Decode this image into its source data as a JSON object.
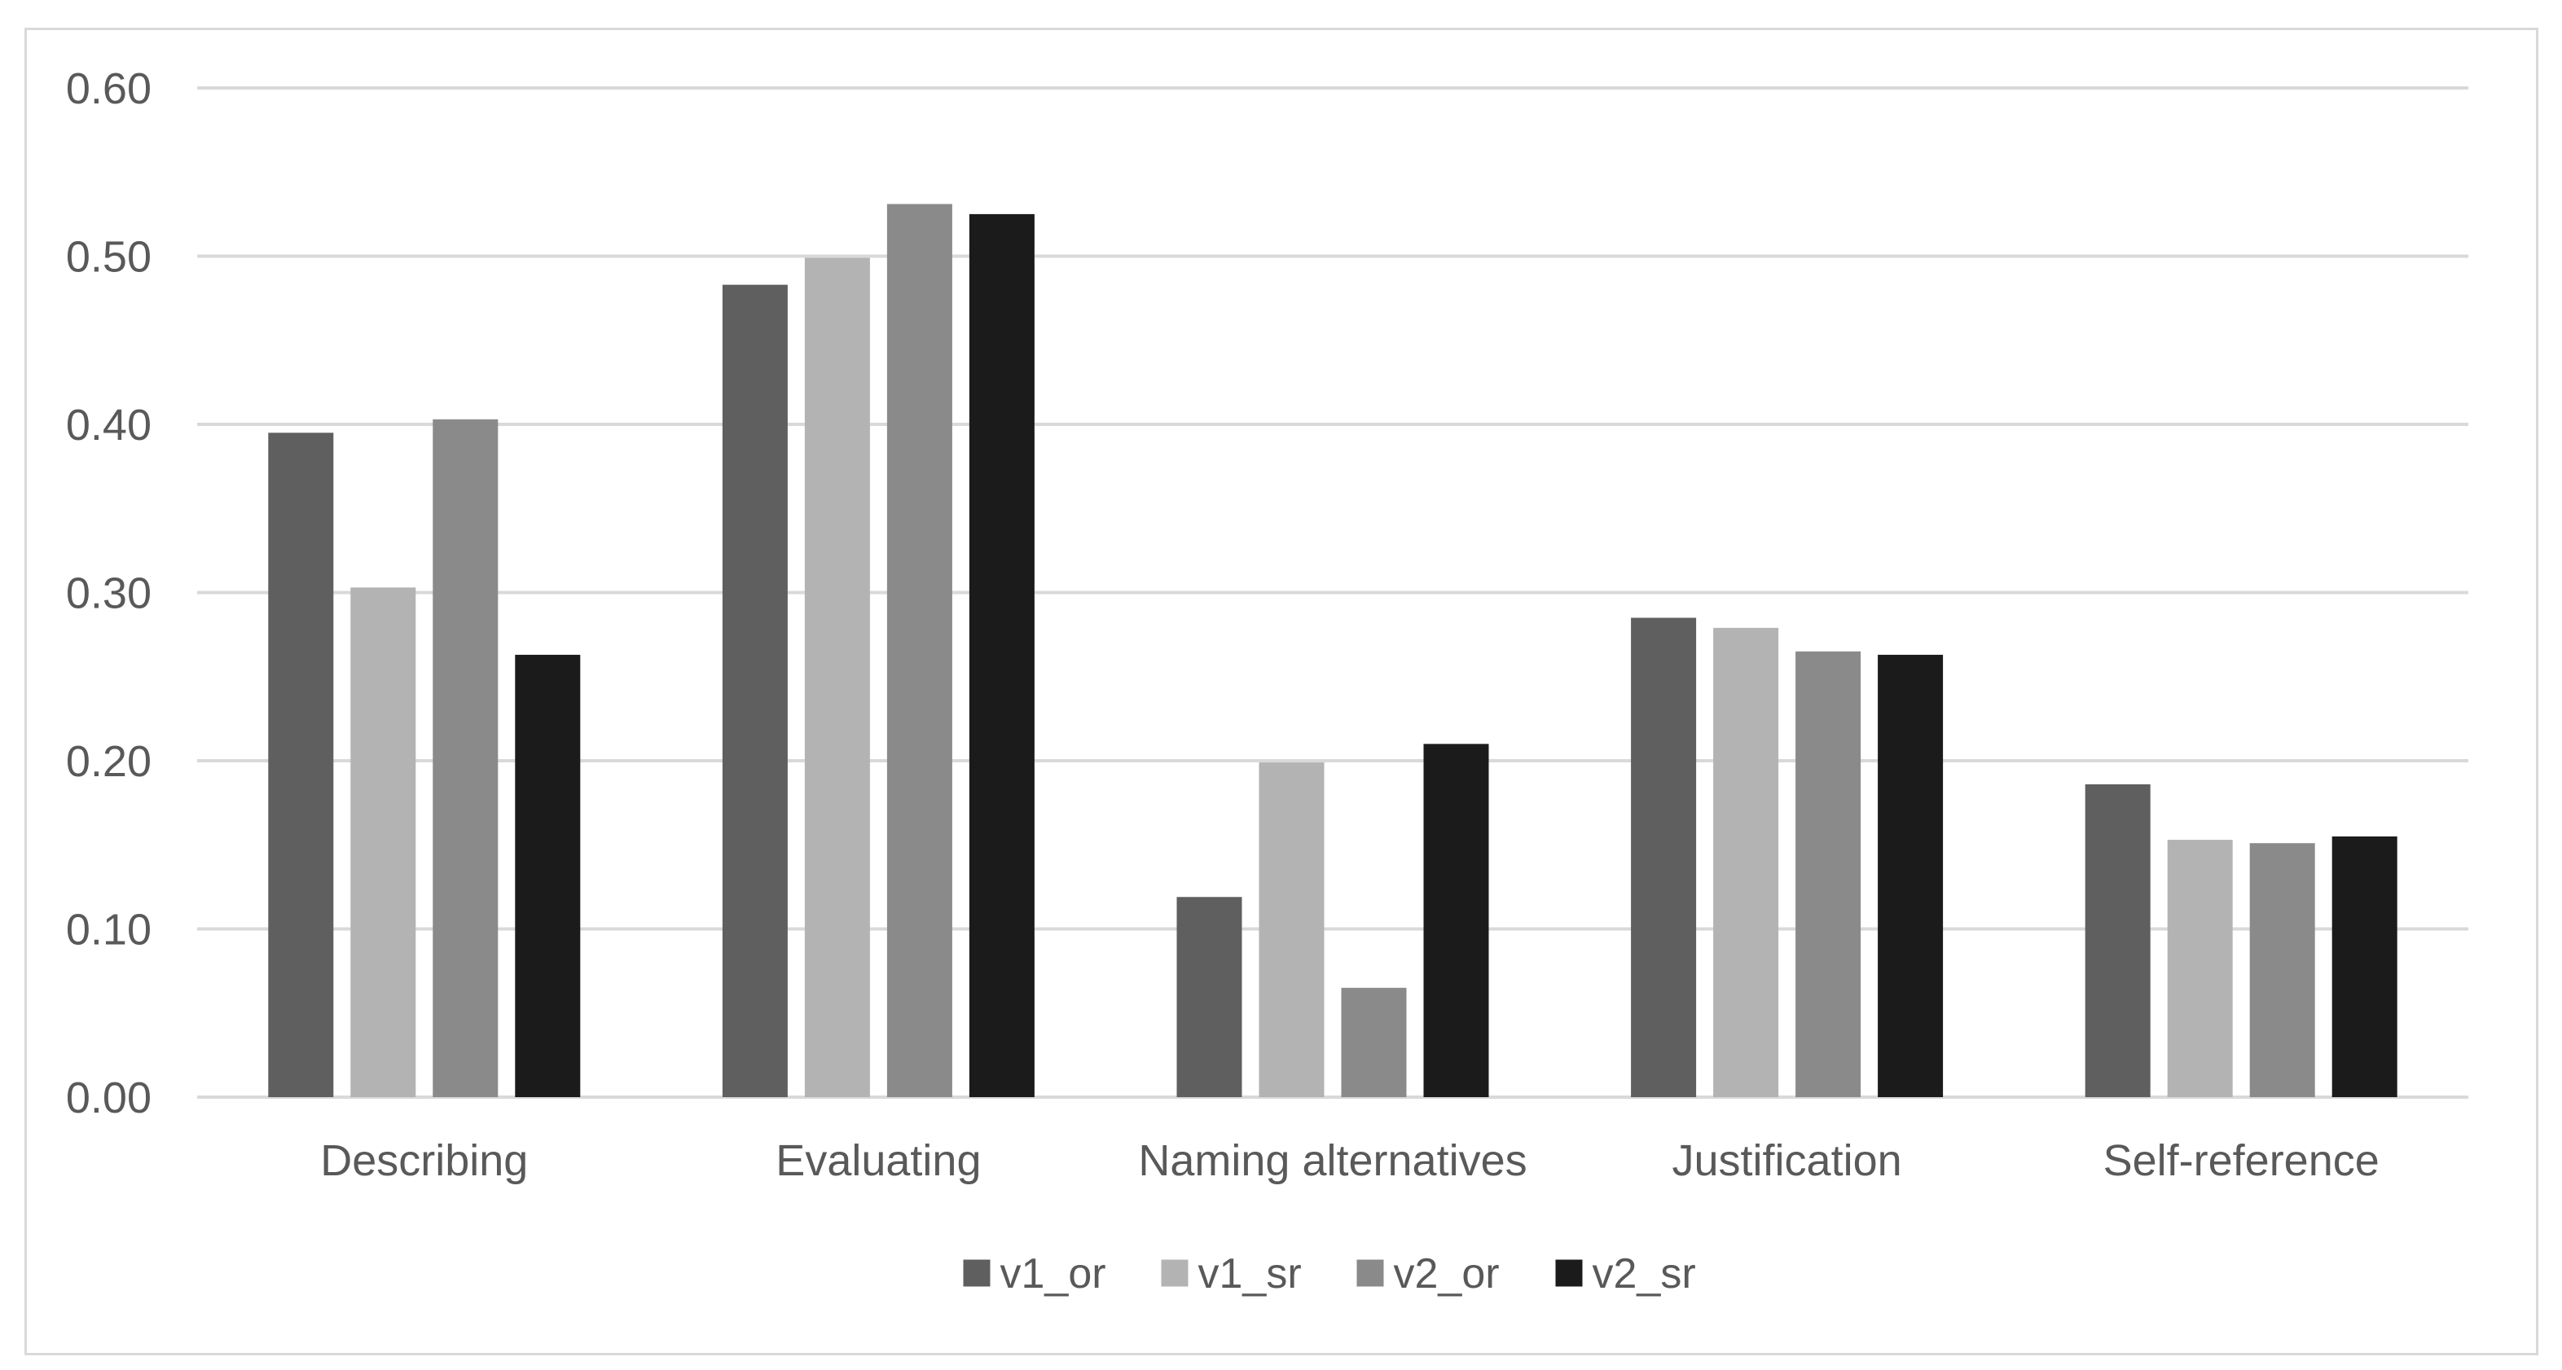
{
  "chart_data": {
    "type": "bar",
    "title": "",
    "xlabel": "",
    "ylabel": "",
    "categories": [
      "Describing",
      "Evaluating",
      "Naming alternatives",
      "Justification",
      "Self-reference"
    ],
    "series": [
      {
        "name": "v1_or",
        "color": "#5f5f5f",
        "values": [
          0.395,
          0.483,
          0.119,
          0.285,
          0.186
        ]
      },
      {
        "name": "v1_sr",
        "color": "#b3b3b3",
        "values": [
          0.303,
          0.499,
          0.199,
          0.279,
          0.153
        ]
      },
      {
        "name": "v2_or",
        "color": "#8a8a8a",
        "values": [
          0.403,
          0.531,
          0.065,
          0.265,
          0.151
        ]
      },
      {
        "name": "v2_sr",
        "color": "#1b1b1b",
        "values": [
          0.263,
          0.525,
          0.21,
          0.263,
          0.155
        ]
      }
    ],
    "ylim": [
      0,
      0.6
    ],
    "yticks": [
      "0.00",
      "0.10",
      "0.20",
      "0.30",
      "0.40",
      "0.50",
      "0.60"
    ],
    "grid": true,
    "legend_position": "bottom-center"
  }
}
